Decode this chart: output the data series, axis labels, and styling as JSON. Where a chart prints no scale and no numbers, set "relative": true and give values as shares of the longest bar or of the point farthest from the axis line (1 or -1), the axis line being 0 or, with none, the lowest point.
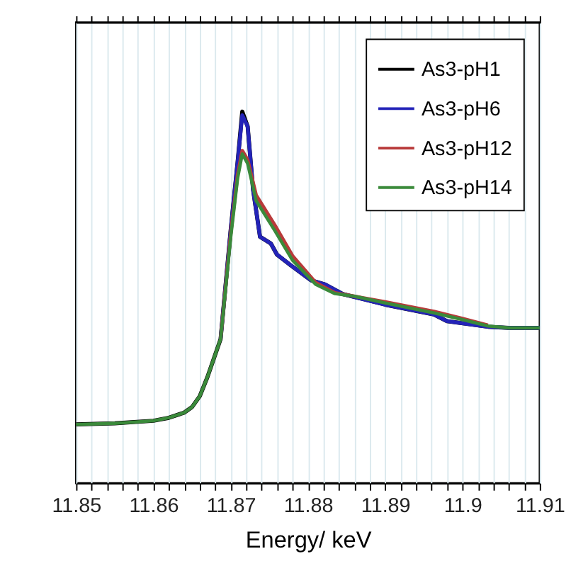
{
  "chart_data": {
    "type": "line",
    "xlabel": "Energy/ keV",
    "relative": true,
    "xlim": [
      11.85,
      11.91
    ],
    "xticks": [
      11.85,
      {
        "value": 11.852,
        "label": null
      },
      {
        "value": 11.854,
        "label": null
      },
      {
        "value": 11.856,
        "label": null
      },
      {
        "value": 11.858,
        "label": null
      },
      11.86,
      {
        "value": 11.862,
        "label": null
      },
      {
        "value": 11.864,
        "label": null
      },
      {
        "value": 11.866,
        "label": null
      },
      {
        "value": 11.868,
        "label": null
      },
      11.87,
      {
        "value": 11.872,
        "label": null
      },
      {
        "value": 11.874,
        "label": null
      },
      {
        "value": 11.876,
        "label": null
      },
      {
        "value": 11.878,
        "label": null
      },
      11.88,
      {
        "value": 11.882,
        "label": null
      },
      {
        "value": 11.884,
        "label": null
      },
      {
        "value": 11.886,
        "label": null
      },
      {
        "value": 11.888,
        "label": null
      },
      11.89,
      {
        "value": 11.892,
        "label": null
      },
      {
        "value": 11.894,
        "label": null
      },
      {
        "value": 11.896,
        "label": null
      },
      {
        "value": 11.898,
        "label": null
      },
      11.9,
      {
        "value": 11.902,
        "label": null
      },
      {
        "value": 11.904,
        "label": null
      },
      {
        "value": 11.906,
        "label": null
      },
      {
        "value": 11.908,
        "label": null
      },
      11.91
    ],
    "grid": "x",
    "legend": "top right",
    "line_style": "solid",
    "marker": "none",
    "series": [
      {
        "name": "As3-pH1",
        "color": "#000000",
        "x": [
          11.85,
          11.855,
          11.86,
          11.862,
          11.864,
          11.865,
          11.866,
          11.867,
          11.8687,
          11.87,
          11.8709,
          11.8715,
          11.8722,
          11.8729,
          11.8738,
          11.8752,
          11.876,
          11.8778,
          11.8804,
          11.8822,
          11.8845,
          11.8901,
          11.8963,
          11.898,
          11.9033,
          11.906,
          11.91
        ],
        "values": [
          0.158,
          0.161,
          0.168,
          0.176,
          0.19,
          0.205,
          0.234,
          0.286,
          0.388,
          0.68,
          0.864,
          1.0,
          0.96,
          0.79,
          0.663,
          0.645,
          0.615,
          0.586,
          0.546,
          0.535,
          0.509,
          0.48,
          0.454,
          0.436,
          0.421,
          0.418,
          0.418
        ]
      },
      {
        "name": "As3-pH6",
        "color": "#2323b8",
        "x": [
          11.8687,
          11.87,
          11.8709,
          11.8715,
          11.8722,
          11.8729,
          11.8738,
          11.8752,
          11.876,
          11.8778,
          11.8804,
          11.8822,
          11.8845,
          11.8901,
          11.8963,
          11.898,
          11.9033,
          11.906,
          11.91
        ],
        "values": [
          0.388,
          0.68,
          0.864,
          0.99,
          0.96,
          0.79,
          0.663,
          0.645,
          0.615,
          0.586,
          0.546,
          0.535,
          0.509,
          0.48,
          0.454,
          0.436,
          0.421,
          0.418,
          0.418
        ]
      },
      {
        "name": "As3-pH12",
        "color": "#b83a3a",
        "x": [
          11.8687,
          11.87,
          11.8709,
          11.8715,
          11.8722,
          11.8733,
          11.8757,
          11.878,
          11.881,
          11.8835,
          11.886,
          11.89,
          11.8963,
          11.9,
          11.9033
        ],
        "values": [
          0.388,
          0.67,
          0.83,
          0.895,
          0.87,
          0.775,
          0.695,
          0.612,
          0.54,
          0.512,
          0.503,
          0.488,
          0.462,
          0.443,
          0.425
        ]
      },
      {
        "name": "As3-pH14",
        "color": "#3a8a3a",
        "x": [
          11.85,
          11.855,
          11.86,
          11.862,
          11.864,
          11.865,
          11.866,
          11.867,
          11.8687,
          11.87,
          11.8709,
          11.8715,
          11.8722,
          11.8733,
          11.8757,
          11.878,
          11.881,
          11.8835,
          11.886,
          11.89,
          11.8963,
          11.9,
          11.9033,
          11.906,
          11.91
        ],
        "values": [
          0.158,
          0.161,
          0.168,
          0.176,
          0.19,
          0.205,
          0.234,
          0.286,
          0.388,
          0.66,
          0.82,
          0.886,
          0.86,
          0.76,
          0.68,
          0.6,
          0.535,
          0.51,
          0.503,
          0.485,
          0.458,
          0.44,
          0.423,
          0.418,
          0.418
        ]
      }
    ]
  }
}
